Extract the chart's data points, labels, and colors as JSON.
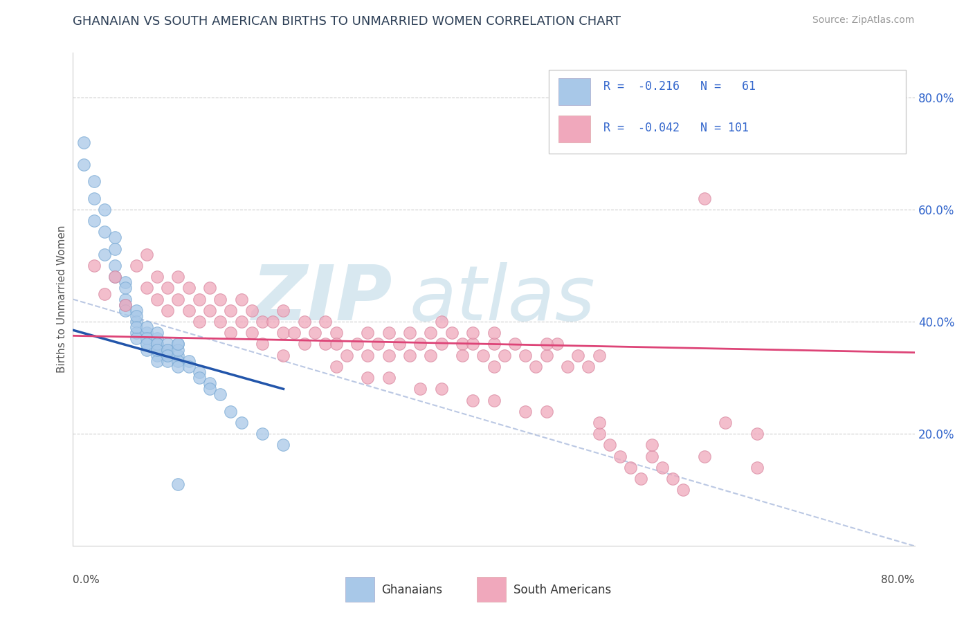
{
  "title": "GHANAIAN VS SOUTH AMERICAN BIRTHS TO UNMARRIED WOMEN CORRELATION CHART",
  "source": "Source: ZipAtlas.com",
  "ylabel": "Births to Unmarried Women",
  "xlim": [
    0.0,
    0.8
  ],
  "ylim": [
    0.0,
    0.88
  ],
  "blue_color": "#A8C8E8",
  "pink_color": "#F0A8BC",
  "title_color": "#2E4057",
  "ghanaian_x": [
    0.01,
    0.01,
    0.02,
    0.02,
    0.02,
    0.03,
    0.03,
    0.03,
    0.04,
    0.04,
    0.04,
    0.04,
    0.05,
    0.05,
    0.05,
    0.05,
    0.05,
    0.06,
    0.06,
    0.06,
    0.06,
    0.06,
    0.06,
    0.07,
    0.07,
    0.07,
    0.07,
    0.07,
    0.07,
    0.08,
    0.08,
    0.08,
    0.08,
    0.08,
    0.08,
    0.08,
    0.08,
    0.09,
    0.09,
    0.09,
    0.09,
    0.09,
    0.09,
    0.1,
    0.1,
    0.1,
    0.1,
    0.1,
    0.1,
    0.11,
    0.11,
    0.12,
    0.12,
    0.13,
    0.13,
    0.14,
    0.15,
    0.16,
    0.18,
    0.2,
    0.1
  ],
  "ghanaian_y": [
    0.68,
    0.72,
    0.62,
    0.58,
    0.65,
    0.56,
    0.6,
    0.52,
    0.53,
    0.55,
    0.5,
    0.48,
    0.47,
    0.44,
    0.46,
    0.43,
    0.42,
    0.42,
    0.4,
    0.41,
    0.38,
    0.37,
    0.39,
    0.38,
    0.36,
    0.39,
    0.37,
    0.35,
    0.36,
    0.37,
    0.35,
    0.36,
    0.34,
    0.38,
    0.36,
    0.33,
    0.35,
    0.35,
    0.34,
    0.36,
    0.33,
    0.35,
    0.34,
    0.36,
    0.34,
    0.33,
    0.32,
    0.35,
    0.36,
    0.33,
    0.32,
    0.31,
    0.3,
    0.29,
    0.28,
    0.27,
    0.24,
    0.22,
    0.2,
    0.18,
    0.11
  ],
  "south_american_x": [
    0.02,
    0.03,
    0.04,
    0.05,
    0.06,
    0.07,
    0.07,
    0.08,
    0.08,
    0.09,
    0.09,
    0.1,
    0.1,
    0.11,
    0.11,
    0.12,
    0.12,
    0.13,
    0.13,
    0.14,
    0.14,
    0.15,
    0.15,
    0.16,
    0.16,
    0.17,
    0.17,
    0.18,
    0.18,
    0.19,
    0.2,
    0.2,
    0.21,
    0.22,
    0.22,
    0.23,
    0.24,
    0.24,
    0.25,
    0.25,
    0.26,
    0.27,
    0.28,
    0.28,
    0.29,
    0.3,
    0.3,
    0.31,
    0.32,
    0.32,
    0.33,
    0.34,
    0.34,
    0.35,
    0.36,
    0.37,
    0.37,
    0.38,
    0.38,
    0.39,
    0.4,
    0.4,
    0.41,
    0.42,
    0.43,
    0.44,
    0.45,
    0.46,
    0.47,
    0.48,
    0.49,
    0.5,
    0.51,
    0.52,
    0.53,
    0.54,
    0.55,
    0.56,
    0.57,
    0.58,
    0.6,
    0.62,
    0.65,
    0.28,
    0.33,
    0.38,
    0.43,
    0.2,
    0.25,
    0.3,
    0.35,
    0.4,
    0.45,
    0.5,
    0.55,
    0.6,
    0.65,
    0.35,
    0.4,
    0.45,
    0.5
  ],
  "south_american_y": [
    0.5,
    0.45,
    0.48,
    0.43,
    0.5,
    0.52,
    0.46,
    0.48,
    0.44,
    0.46,
    0.42,
    0.48,
    0.44,
    0.46,
    0.42,
    0.44,
    0.4,
    0.42,
    0.46,
    0.4,
    0.44,
    0.42,
    0.38,
    0.4,
    0.44,
    0.38,
    0.42,
    0.4,
    0.36,
    0.4,
    0.38,
    0.42,
    0.38,
    0.36,
    0.4,
    0.38,
    0.36,
    0.4,
    0.38,
    0.36,
    0.34,
    0.36,
    0.38,
    0.34,
    0.36,
    0.38,
    0.34,
    0.36,
    0.38,
    0.34,
    0.36,
    0.38,
    0.34,
    0.36,
    0.38,
    0.36,
    0.34,
    0.36,
    0.38,
    0.34,
    0.36,
    0.32,
    0.34,
    0.36,
    0.34,
    0.32,
    0.34,
    0.36,
    0.32,
    0.34,
    0.32,
    0.2,
    0.18,
    0.16,
    0.14,
    0.12,
    0.16,
    0.14,
    0.12,
    0.1,
    0.62,
    0.22,
    0.2,
    0.3,
    0.28,
    0.26,
    0.24,
    0.34,
    0.32,
    0.3,
    0.28,
    0.26,
    0.24,
    0.22,
    0.18,
    0.16,
    0.14,
    0.4,
    0.38,
    0.36,
    0.34
  ],
  "blue_line_x": [
    0.0,
    0.2
  ],
  "blue_line_y": [
    0.385,
    0.28
  ],
  "pink_line_x": [
    0.0,
    0.8
  ],
  "pink_line_y": [
    0.375,
    0.345
  ],
  "dash_line_x": [
    0.0,
    0.8
  ],
  "dash_line_y": [
    0.44,
    0.0
  ]
}
